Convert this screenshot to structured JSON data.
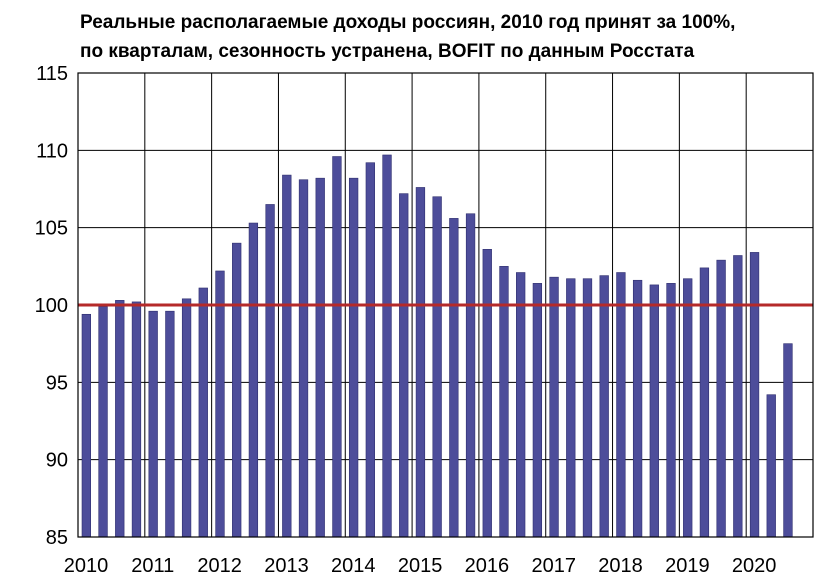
{
  "chart_data": {
    "type": "bar",
    "title": "Реальные располагаемые доходы россиян, 2010 год принят за 100%,",
    "subtitle": "по кварталам, сезонность устранена, BOFIT по данным Росстата",
    "xlabel": "",
    "ylabel": "",
    "ylim": [
      85,
      115
    ],
    "yticks": [
      "85",
      "90",
      "95",
      "100",
      "105",
      "110",
      "115"
    ],
    "x_tick_labels": [
      "2010",
      "2011",
      "2012",
      "2013",
      "2014",
      "2015",
      "2016",
      "2017",
      "2018",
      "2019",
      "2020"
    ],
    "categories": [
      "2010 Q1",
      "2010 Q2",
      "2010 Q3",
      "2010 Q4",
      "2011 Q1",
      "2011 Q2",
      "2011 Q3",
      "2011 Q4",
      "2012 Q1",
      "2012 Q2",
      "2012 Q3",
      "2012 Q4",
      "2013 Q1",
      "2013 Q2",
      "2013 Q3",
      "2013 Q4",
      "2014 Q1",
      "2014 Q2",
      "2014 Q3",
      "2014 Q4",
      "2015 Q1",
      "2015 Q2",
      "2015 Q3",
      "2015 Q4",
      "2016 Q1",
      "2016 Q2",
      "2016 Q3",
      "2016 Q4",
      "2017 Q1",
      "2017 Q2",
      "2017 Q3",
      "2017 Q4",
      "2018 Q1",
      "2018 Q2",
      "2018 Q3",
      "2018 Q4",
      "2019 Q1",
      "2019 Q2",
      "2019 Q3",
      "2019 Q4",
      "2020 Q1",
      "2020 Q2",
      "2020 Q3"
    ],
    "values": [
      99.4,
      99.9,
      100.3,
      100.2,
      99.6,
      99.6,
      100.4,
      101.1,
      102.2,
      104.0,
      105.3,
      106.5,
      108.4,
      108.1,
      108.2,
      109.6,
      108.2,
      109.2,
      109.7,
      107.2,
      107.6,
      107.0,
      105.6,
      105.9,
      103.6,
      102.5,
      102.1,
      101.4,
      101.8,
      101.7,
      101.7,
      101.9,
      102.1,
      101.6,
      101.3,
      101.4,
      101.7,
      102.4,
      102.9,
      103.2,
      103.4,
      94.2,
      97.5
    ],
    "reference_line": 100,
    "grid": true,
    "legend": "none",
    "colors": {
      "bar": "#4d4d9a",
      "bar_edge": "#2e2e6e",
      "reference_line": "#b52a2a",
      "grid": "#000000"
    }
  }
}
